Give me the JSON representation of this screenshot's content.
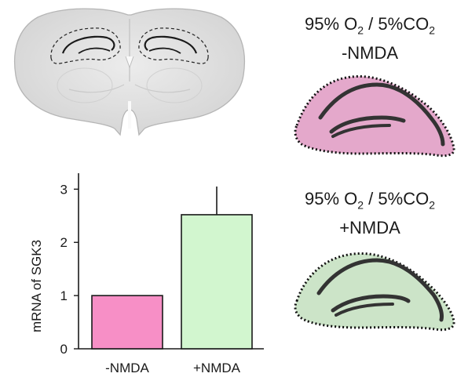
{
  "top_label": {
    "line1_part_a": "95% O",
    "line1_sub_a": "2",
    "line1_part_b": " / 5%CO",
    "line1_sub_b": "2",
    "line2": "-NMDA"
  },
  "bottom_label": {
    "line1_part_a": "95% O",
    "line1_sub_a": "2",
    "line1_part_b": " / 5%CO",
    "line1_sub_b": "2",
    "line2": "+NMDA"
  },
  "colors": {
    "minus_nmda": "#f78fc6",
    "plus_nmda": "#d2f6cf",
    "minus_slice_fill": "#e4a8cb",
    "plus_slice_fill": "#cce4c8"
  },
  "chart_data": {
    "type": "bar",
    "categories": [
      "-NMDA",
      "+NMDA"
    ],
    "values": [
      1.0,
      2.52
    ],
    "errors": [
      0,
      0.53
    ],
    "ylabel": "mRNA of SGK3",
    "ylim": [
      0,
      3.3
    ],
    "yticks": [
      0,
      1,
      2,
      3
    ],
    "grid": false,
    "colors": [
      "#f78fc6",
      "#d2f6cf"
    ]
  }
}
